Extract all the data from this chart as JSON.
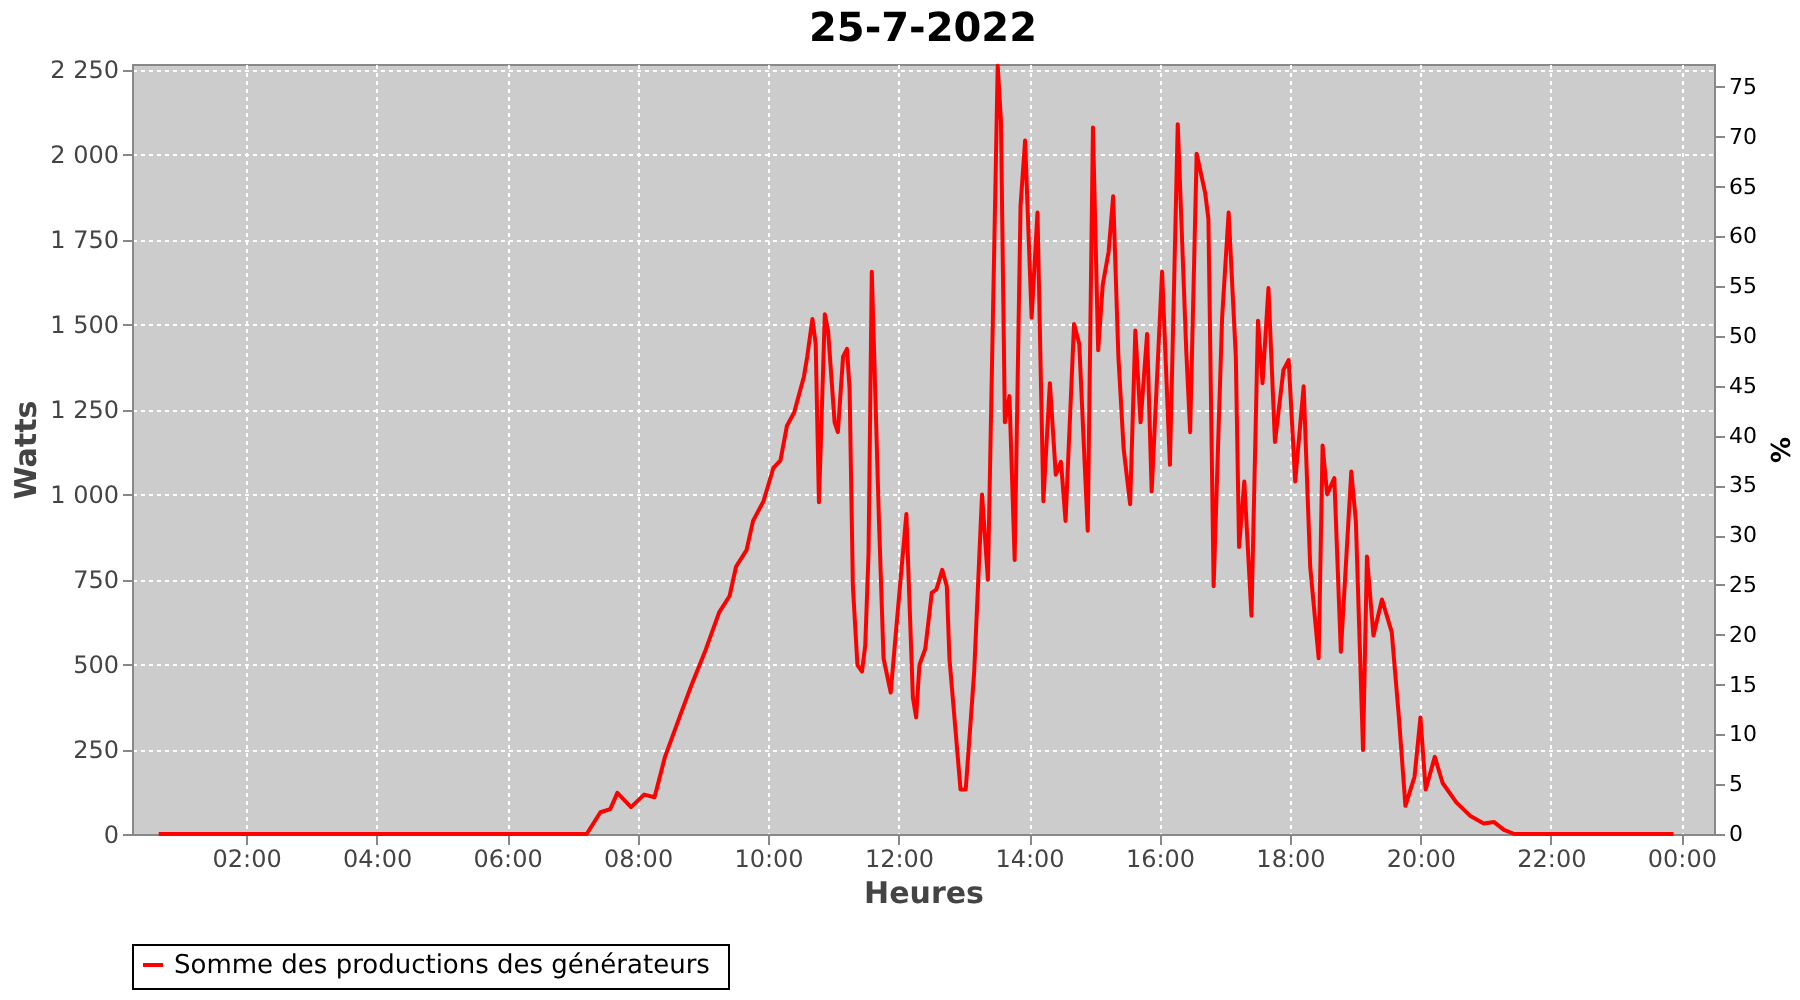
{
  "chart_data": {
    "type": "line",
    "title": "25-7-2022",
    "xlabel": "Heures",
    "ylabel": "Watts",
    "y2label": "%",
    "xlim": [
      0.25,
      24.5
    ],
    "xticks": [
      {
        "value": 2,
        "label": "02:00"
      },
      {
        "value": 4,
        "label": "04:00"
      },
      {
        "value": 6,
        "label": "06:00"
      },
      {
        "value": 8,
        "label": "08:00"
      },
      {
        "value": 10,
        "label": "10:00"
      },
      {
        "value": 12,
        "label": "12:00"
      },
      {
        "value": 14,
        "label": "14:00"
      },
      {
        "value": 16,
        "label": "16:00"
      },
      {
        "value": 18,
        "label": "18:00"
      },
      {
        "value": 20,
        "label": "20:00"
      },
      {
        "value": 22,
        "label": "22:00"
      },
      {
        "value": 24,
        "label": "00:00"
      }
    ],
    "ylim": [
      0,
      2265
    ],
    "yticks": [
      0,
      250,
      500,
      750,
      {
        "value": 1000,
        "label": "1 000"
      },
      {
        "value": 1250,
        "label": "1 250"
      },
      {
        "value": 1500,
        "label": "1 500"
      },
      {
        "value": 1750,
        "label": "1 750"
      },
      {
        "value": 2000,
        "label": "2 000"
      },
      {
        "value": 2250,
        "label": "2 250"
      }
    ],
    "y2lim": [
      0,
      77.3
    ],
    "y2ticks": [
      0,
      5,
      10,
      15,
      20,
      25,
      30,
      35,
      40,
      45,
      50,
      55,
      60,
      65,
      70,
      75
    ],
    "grid": true,
    "legend": "bottom",
    "marker": "none",
    "line_style": "solid",
    "series": [
      {
        "name": "Somme des productions des  générateurs",
        "color": "#ff0000",
        "x": [
          0.66,
          7.22,
          7.43,
          7.58,
          7.69,
          7.9,
          8.1,
          8.26,
          8.42,
          8.68,
          8.83,
          9.04,
          9.25,
          9.41,
          9.51,
          9.67,
          9.77,
          9.93,
          10.08,
          10.19,
          10.29,
          10.4,
          10.55,
          10.6,
          10.68,
          10.73,
          10.78,
          10.87,
          10.92,
          11.02,
          11.07,
          11.15,
          11.21,
          11.25,
          11.3,
          11.37,
          11.44,
          11.49,
          11.54,
          11.59,
          11.7,
          11.77,
          11.88,
          11.96,
          12.12,
          12.22,
          12.27,
          12.32,
          12.41,
          12.51,
          12.58,
          12.67,
          12.74,
          12.78,
          12.95,
          13.03,
          13.16,
          13.28,
          13.37,
          13.52,
          13.57,
          13.63,
          13.7,
          13.78,
          13.87,
          13.94,
          14.04,
          14.13,
          14.22,
          14.32,
          14.41,
          14.49,
          14.56,
          14.69,
          14.77,
          14.9,
          14.98,
          15.06,
          15.13,
          15.22,
          15.29,
          15.37,
          15.45,
          15.55,
          15.63,
          15.71,
          15.81,
          15.88,
          16.04,
          16.16,
          16.28,
          16.41,
          16.47,
          16.57,
          16.7,
          16.75,
          16.83,
          16.96,
          17.06,
          17.17,
          17.22,
          17.3,
          17.41,
          17.51,
          17.58,
          17.67,
          17.77,
          17.9,
          17.98,
          18.08,
          18.21,
          18.31,
          18.44,
          18.5,
          18.57,
          18.68,
          18.78,
          18.94,
          19.01,
          19.12,
          19.18,
          19.28,
          19.41,
          19.56,
          19.67,
          19.77,
          19.91,
          20.0,
          20.08,
          20.22,
          20.34,
          20.55,
          20.76,
          20.97,
          21.13,
          21.28,
          21.44,
          23.88
        ],
        "values": [
          0,
          0,
          64,
          73,
          121,
          79,
          116,
          108,
          227,
          363,
          440,
          540,
          652,
          700,
          787,
          835,
          921,
          979,
          1076,
          1099,
          1201,
          1240,
          1346,
          1404,
          1515,
          1442,
          976,
          1529,
          1481,
          1211,
          1182,
          1404,
          1427,
          1307,
          729,
          497,
          478,
          555,
          825,
          1654,
          921,
          517,
          416,
          594,
          941,
          401,
          343,
          497,
          545,
          710,
          719,
          777,
          729,
          517,
          131,
          131,
          478,
          999,
          748,
          2260,
          2098,
          1211,
          1288,
          806,
          1847,
          2040,
          1519,
          1828,
          979,
          1326,
          1057,
          1095,
          921,
          1500,
          1442,
          892,
          2078,
          1423,
          1615,
          1712,
          1876,
          1404,
          1134,
          970,
          1481,
          1211,
          1471,
          1008,
          1654,
          1086,
          2088,
          1423,
          1182,
          2001,
          1886,
          1809,
          729,
          1519,
          1828,
          1404,
          844,
          1037,
          642,
          1510,
          1326,
          1606,
          1153,
          1365,
          1394,
          1037,
          1317,
          787,
          517,
          1143,
          999,
          1047,
          536,
          1066,
          921,
          247,
          816,
          584,
          690,
          594,
          343,
          83,
          169,
          343,
          131,
          227,
          150,
          93,
          54,
          31,
          35,
          12,
          0,
          0
        ]
      }
    ]
  }
}
